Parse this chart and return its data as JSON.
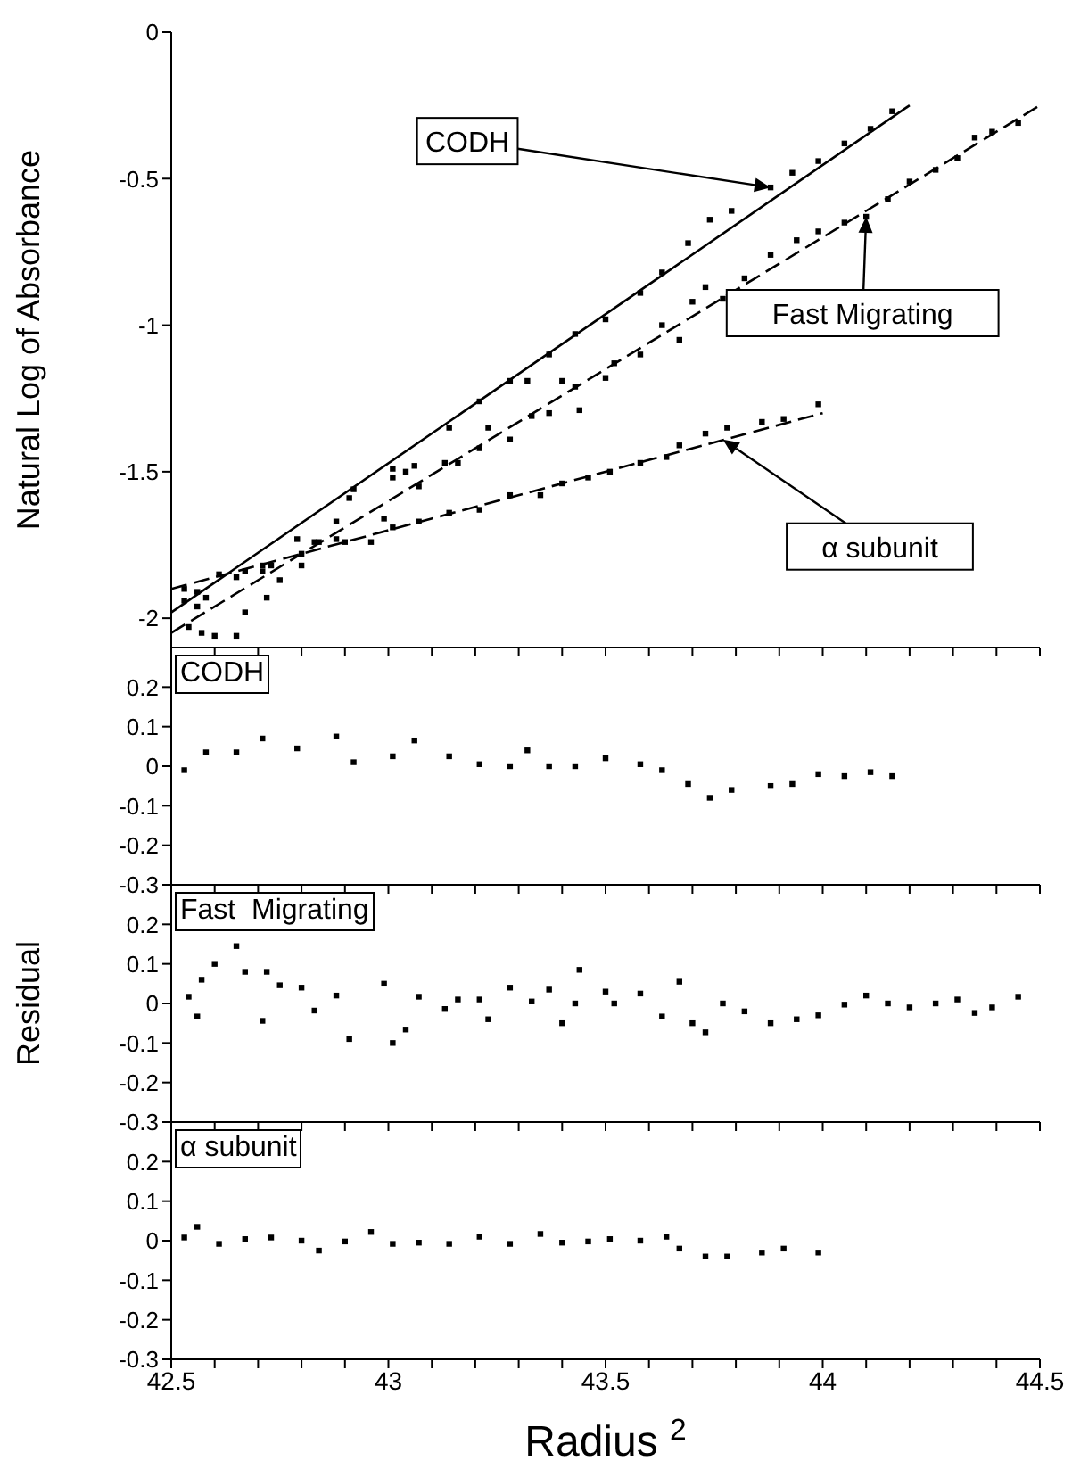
{
  "chart_data": [
    {
      "type": "scatter",
      "ylabel": "Natural Log of Absorbance",
      "xlim": [
        42.5,
        44.5
      ],
      "ylim": [
        -2.1,
        0
      ],
      "tick_labels": "y",
      "marker": "square",
      "xticks": [
        42.5,
        {
          "value": 42.6,
          "label": null
        },
        {
          "value": 42.7,
          "label": null
        },
        {
          "value": 42.8,
          "label": null
        },
        {
          "value": 42.9,
          "label": null
        },
        43,
        {
          "value": 43.1,
          "label": null
        },
        {
          "value": 43.2,
          "label": null
        },
        {
          "value": 43.3,
          "label": null
        },
        {
          "value": 43.4,
          "label": null
        },
        43.5,
        {
          "value": 43.6,
          "label": null
        },
        {
          "value": 43.7,
          "label": null
        },
        {
          "value": 43.8,
          "label": null
        },
        {
          "value": 43.9,
          "label": null
        },
        44,
        {
          "value": 44.1,
          "label": null
        },
        {
          "value": 44.2,
          "label": null
        },
        {
          "value": 44.3,
          "label": null
        },
        {
          "value": 44.4,
          "label": null
        },
        44.5
      ],
      "yticks": [
        0,
        -0.5,
        -1,
        -1.5,
        -2
      ],
      "annotations": [
        {
          "text": "CODH",
          "x": 43.88,
          "y": -0.53
        },
        {
          "text": "Fast Migrating",
          "x": 44.1,
          "y": -0.63
        },
        {
          "text": "α subunit",
          "x": 43.77,
          "y": -1.39
        }
      ],
      "series": [
        {
          "color": "#000000",
          "x": [
            42.53,
            42.58,
            42.65,
            42.71,
            42.79,
            42.88,
            42.92,
            43.01,
            43.06,
            43.14,
            43.21,
            43.28,
            43.32,
            43.37,
            43.43,
            43.5,
            43.58,
            43.63,
            43.69,
            43.74,
            43.79,
            43.88,
            43.93,
            43.99,
            44.05,
            44.11,
            44.16
          ],
          "values": [
            -1.94,
            -1.93,
            -1.86,
            -1.84,
            -1.73,
            -1.67,
            -1.56,
            -1.49,
            -1.48,
            -1.35,
            -1.26,
            -1.19,
            -1.19,
            -1.1,
            -1.03,
            -0.98,
            -0.89,
            -0.82,
            -0.72,
            -0.64,
            -0.61,
            -0.53,
            -0.48,
            -0.44,
            -0.38,
            -0.33,
            -0.27
          ]
        },
        {
          "color": "#000000",
          "x": [
            42.54,
            42.56,
            42.57,
            42.6,
            42.65,
            42.67,
            42.71,
            42.72,
            42.75,
            42.8,
            42.83,
            42.88,
            42.91,
            42.99,
            43.01,
            43.04,
            43.07,
            43.13,
            43.16,
            43.21,
            43.23,
            43.28,
            43.33,
            43.37,
            43.4,
            43.43,
            43.44,
            43.5,
            43.52,
            43.58,
            43.63,
            43.67,
            43.7,
            43.73,
            43.77,
            43.82,
            43.88,
            43.94,
            43.99,
            44.05,
            44.1,
            44.15,
            44.2,
            44.26,
            44.31,
            44.35,
            44.39,
            44.45
          ],
          "values": [
            -2.03,
            -1.96,
            -2.05,
            -2.06,
            -2.06,
            -1.98,
            -1.82,
            -1.93,
            -1.87,
            -1.82,
            -1.74,
            -1.73,
            -1.59,
            -1.66,
            -1.52,
            -1.5,
            -1.55,
            -1.47,
            -1.47,
            -1.42,
            -1.35,
            -1.39,
            -1.31,
            -1.3,
            -1.19,
            -1.21,
            -1.29,
            -1.18,
            -1.13,
            -1.1,
            -1.0,
            -1.05,
            -0.92,
            -0.87,
            -0.91,
            -0.84,
            -0.76,
            -0.71,
            -0.68,
            -0.65,
            -0.63,
            -0.57,
            -0.51,
            -0.47,
            -0.43,
            -0.36,
            -0.34,
            -0.31
          ]
        },
        {
          "color": "#000000",
          "x": [
            42.53,
            42.56,
            42.61,
            42.67,
            42.73,
            42.8,
            42.84,
            42.9,
            42.96,
            43.01,
            43.07,
            43.14,
            43.21,
            43.28,
            43.35,
            43.4,
            43.46,
            43.51,
            43.58,
            43.64,
            43.67,
            43.73,
            43.78,
            43.86,
            43.91,
            43.99
          ],
          "values": [
            -1.9,
            -1.91,
            -1.85,
            -1.84,
            -1.82,
            -1.78,
            -1.74,
            -1.74,
            -1.74,
            -1.69,
            -1.67,
            -1.64,
            -1.63,
            -1.58,
            -1.58,
            -1.54,
            -1.52,
            -1.5,
            -1.47,
            -1.45,
            -1.41,
            -1.37,
            -1.35,
            -1.33,
            -1.32,
            -1.27
          ]
        },
        {
          "type": "line",
          "marker": "none",
          "line_style": "solid",
          "color": "#000000",
          "x": [
            42.5,
            44.2
          ],
          "values": [
            -1.98,
            -0.25
          ]
        },
        {
          "type": "line",
          "marker": "none",
          "line_style": "dashed",
          "color": "#000000",
          "x": [
            42.5,
            44.5
          ],
          "values": [
            -2.05,
            -0.25
          ]
        },
        {
          "type": "line",
          "marker": "none",
          "line_style": "dashed",
          "color": "#000000",
          "x": [
            42.5,
            44.0
          ],
          "values": [
            -1.9,
            -1.3
          ]
        }
      ]
    },
    {
      "type": "scatter",
      "title": "CODH",
      "xlim": [
        42.5,
        44.5
      ],
      "ylim": [
        -0.3,
        0.3
      ],
      "tick_labels": "y",
      "marker": "square",
      "xticks": [
        42.5,
        {
          "value": 42.6,
          "label": null
        },
        {
          "value": 42.7,
          "label": null
        },
        {
          "value": 42.8,
          "label": null
        },
        {
          "value": 42.9,
          "label": null
        },
        43,
        {
          "value": 43.1,
          "label": null
        },
        {
          "value": 43.2,
          "label": null
        },
        {
          "value": 43.3,
          "label": null
        },
        {
          "value": 43.4,
          "label": null
        },
        43.5,
        {
          "value": 43.6,
          "label": null
        },
        {
          "value": 43.7,
          "label": null
        },
        {
          "value": 43.8,
          "label": null
        },
        {
          "value": 43.9,
          "label": null
        },
        44,
        {
          "value": 44.1,
          "label": null
        },
        {
          "value": 44.2,
          "label": null
        },
        {
          "value": 44.3,
          "label": null
        },
        {
          "value": 44.4,
          "label": null
        },
        44.5
      ],
      "yticks": [
        0.2,
        0.1,
        0,
        -0.1,
        -0.2,
        -0.3
      ],
      "series": [
        {
          "color": "#000000",
          "x": [
            42.53,
            42.58,
            42.65,
            42.71,
            42.79,
            42.88,
            42.92,
            43.01,
            43.06,
            43.14,
            43.21,
            43.28,
            43.32,
            43.37,
            43.43,
            43.5,
            43.58,
            43.63,
            43.69,
            43.74,
            43.79,
            43.88,
            43.93,
            43.99,
            44.05,
            44.11,
            44.16
          ],
          "values": [
            -0.01,
            0.035,
            0.035,
            0.07,
            0.045,
            0.075,
            0.01,
            0.025,
            0.065,
            0.025,
            0.005,
            0,
            0.04,
            0,
            0,
            0.02,
            0.005,
            -0.01,
            -0.045,
            -0.08,
            -0.06,
            -0.05,
            -0.045,
            -0.02,
            -0.025,
            -0.015,
            -0.025
          ]
        }
      ]
    },
    {
      "type": "scatter",
      "title": "Fast  Migrating",
      "ylabel": "Residual",
      "xlim": [
        42.5,
        44.5
      ],
      "ylim": [
        -0.3,
        0.3
      ],
      "tick_labels": "y",
      "marker": "square",
      "xticks": [
        42.5,
        {
          "value": 42.6,
          "label": null
        },
        {
          "value": 42.7,
          "label": null
        },
        {
          "value": 42.8,
          "label": null
        },
        {
          "value": 42.9,
          "label": null
        },
        43,
        {
          "value": 43.1,
          "label": null
        },
        {
          "value": 43.2,
          "label": null
        },
        {
          "value": 43.3,
          "label": null
        },
        {
          "value": 43.4,
          "label": null
        },
        43.5,
        {
          "value": 43.6,
          "label": null
        },
        {
          "value": 43.7,
          "label": null
        },
        {
          "value": 43.8,
          "label": null
        },
        {
          "value": 43.9,
          "label": null
        },
        44,
        {
          "value": 44.1,
          "label": null
        },
        {
          "value": 44.2,
          "label": null
        },
        {
          "value": 44.3,
          "label": null
        },
        {
          "value": 44.4,
          "label": null
        },
        44.5
      ],
      "yticks": [
        0.2,
        0.1,
        0,
        -0.1,
        -0.2,
        -0.3
      ],
      "series": [
        {
          "color": "#000000",
          "x": [
            42.54,
            42.56,
            42.57,
            42.6,
            42.65,
            42.67,
            42.71,
            42.72,
            42.75,
            42.8,
            42.83,
            42.88,
            42.91,
            42.99,
            43.01,
            43.04,
            43.07,
            43.13,
            43.16,
            43.21,
            43.23,
            43.28,
            43.33,
            43.37,
            43.4,
            43.43,
            43.44,
            43.5,
            43.52,
            43.58,
            43.63,
            43.67,
            43.7,
            43.73,
            43.77,
            43.82,
            43.88,
            43.94,
            43.99,
            44.05,
            44.1,
            44.15,
            44.2,
            44.26,
            44.31,
            44.35,
            44.39,
            44.45
          ],
          "values": [
            0.017,
            -0.033,
            0.06,
            0.1,
            0.145,
            0.08,
            -0.044,
            0.08,
            0.046,
            0.04,
            -0.018,
            0.02,
            -0.09,
            0.05,
            -0.1,
            -0.066,
            0.017,
            -0.014,
            0.01,
            0.01,
            -0.04,
            0.04,
            0.005,
            0.035,
            -0.05,
            0,
            0.085,
            0.03,
            0,
            0.025,
            -0.033,
            0.055,
            -0.05,
            -0.073,
            0,
            -0.02,
            -0.05,
            -0.04,
            -0.03,
            -0.003,
            0.02,
            0,
            -0.01,
            0,
            0.01,
            -0.024,
            -0.01,
            0.017
          ]
        }
      ]
    },
    {
      "type": "scatter",
      "title": "α subunit",
      "xlabel": "Radius $^{2}$",
      "xlim": [
        42.5,
        44.5
      ],
      "ylim": [
        -0.3,
        0.3
      ],
      "marker": "square",
      "xticks": [
        42.5,
        {
          "value": 42.6,
          "label": null
        },
        {
          "value": 42.7,
          "label": null
        },
        {
          "value": 42.8,
          "label": null
        },
        {
          "value": 42.9,
          "label": null
        },
        43,
        {
          "value": 43.1,
          "label": null
        },
        {
          "value": 43.2,
          "label": null
        },
        {
          "value": 43.3,
          "label": null
        },
        {
          "value": 43.4,
          "label": null
        },
        43.5,
        {
          "value": 43.6,
          "label": null
        },
        {
          "value": 43.7,
          "label": null
        },
        {
          "value": 43.8,
          "label": null
        },
        {
          "value": 43.9,
          "label": null
        },
        44,
        {
          "value": 44.1,
          "label": null
        },
        {
          "value": 44.2,
          "label": null
        },
        {
          "value": 44.3,
          "label": null
        },
        {
          "value": 44.4,
          "label": null
        },
        44.5
      ],
      "yticks": [
        0.2,
        0.1,
        0,
        -0.1,
        -0.2,
        -0.3
      ],
      "series": [
        {
          "color": "#000000",
          "x": [
            42.53,
            42.56,
            42.61,
            42.67,
            42.73,
            42.8,
            42.84,
            42.9,
            42.96,
            43.01,
            43.07,
            43.14,
            43.21,
            43.28,
            43.35,
            43.4,
            43.46,
            43.51,
            43.58,
            43.64,
            43.67,
            43.73,
            43.78,
            43.86,
            43.91,
            43.99
          ],
          "values": [
            0.008,
            0.035,
            -0.008,
            0.004,
            0.008,
            0,
            -0.025,
            -0.002,
            0.022,
            -0.008,
            -0.005,
            -0.008,
            0.01,
            -0.008,
            0.017,
            -0.005,
            -0.002,
            0.004,
            0,
            0.01,
            -0.02,
            -0.04,
            -0.04,
            -0.03,
            -0.02,
            -0.03
          ]
        }
      ]
    }
  ]
}
